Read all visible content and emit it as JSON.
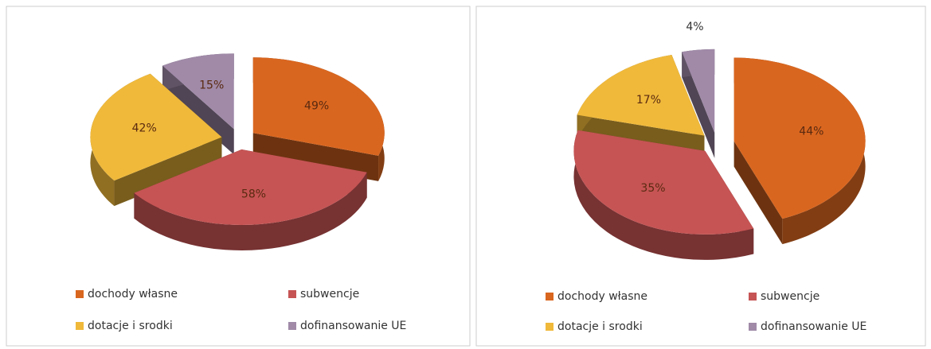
{
  "chart_data": [
    {
      "type": "pie",
      "categories": [
        "dochody własne",
        "subwencje",
        "dotacje i srodki",
        "dofinansowanie UE"
      ],
      "values": [
        49,
        58,
        42,
        15
      ],
      "value_labels": [
        "49%",
        "58%",
        "42%",
        "15%"
      ],
      "colors": [
        "#d9661f",
        "#c65454",
        "#f0b93a",
        "#a08aa8"
      ]
    },
    {
      "type": "pie",
      "categories": [
        "dochody własne",
        "subwencje",
        "dotacje i srodki",
        "dofinansowanie UE"
      ],
      "values": [
        44,
        35,
        17,
        4
      ],
      "value_labels": [
        "44%",
        "35%",
        "17%",
        "4%"
      ],
      "colors": [
        "#d9661f",
        "#c65454",
        "#f0b93a",
        "#a08aa8"
      ]
    }
  ]
}
